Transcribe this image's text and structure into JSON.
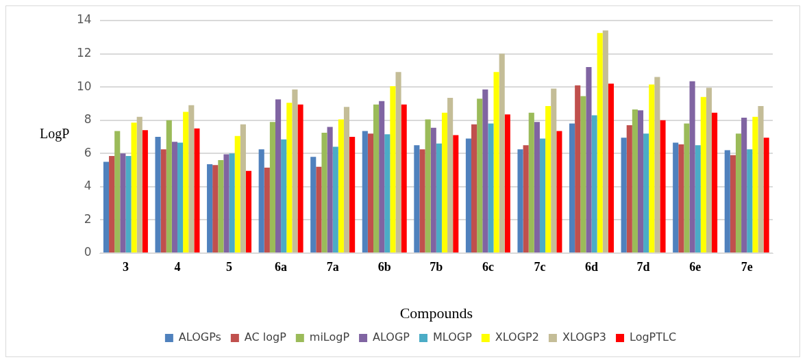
{
  "chart_data": {
    "type": "bar",
    "xlabel": "Compounds",
    "ylabel": "LogP",
    "categories": [
      "3",
      "4",
      "5",
      "6a",
      "7a",
      "6b",
      "7b",
      "6c",
      "7c",
      "6d",
      "7d",
      "6e",
      "7e"
    ],
    "ylim": [
      0,
      14
    ],
    "yticks": [
      0,
      2,
      4,
      6,
      8,
      10,
      12,
      14
    ],
    "grid": "y",
    "legend": "bottom",
    "series": [
      {
        "name": "ALOGPs",
        "color": "#4f81bd",
        "values": [
          5.5,
          7.0,
          5.35,
          6.25,
          5.8,
          7.35,
          6.5,
          6.9,
          6.25,
          7.8,
          6.95,
          6.65,
          6.2
        ]
      },
      {
        "name": "AC logP",
        "color": "#c0504d",
        "values": [
          5.85,
          6.25,
          5.3,
          5.15,
          5.2,
          7.2,
          6.25,
          7.75,
          6.5,
          10.1,
          7.7,
          6.55,
          5.9
        ]
      },
      {
        "name": "miLogP",
        "color": "#9bbb59",
        "values": [
          7.35,
          8.0,
          5.6,
          7.9,
          7.25,
          8.95,
          8.05,
          9.3,
          8.45,
          9.45,
          8.65,
          7.8,
          7.2
        ]
      },
      {
        "name": "ALOGP",
        "color": "#8064a2",
        "values": [
          6.0,
          6.7,
          5.95,
          9.25,
          7.6,
          9.15,
          7.55,
          9.85,
          7.9,
          11.2,
          8.6,
          10.35,
          8.15
        ]
      },
      {
        "name": "MLOGP",
        "color": "#4bacc6",
        "values": [
          5.85,
          6.65,
          6.0,
          6.85,
          6.4,
          7.15,
          6.6,
          7.8,
          6.9,
          8.3,
          7.2,
          6.5,
          6.25
        ]
      },
      {
        "name": "XLOGP2",
        "color": "#ffff00",
        "values": [
          7.85,
          8.5,
          7.05,
          9.05,
          8.05,
          10.05,
          8.45,
          10.9,
          8.85,
          13.25,
          10.15,
          9.4,
          8.2
        ]
      },
      {
        "name": "XLOGP3",
        "color": "#c4bd97",
        "values": [
          8.2,
          8.9,
          7.75,
          9.85,
          8.8,
          10.9,
          9.35,
          12.0,
          9.9,
          13.4,
          10.6,
          9.95,
          8.85
        ]
      },
      {
        "name": "LogPTLC",
        "color": "#ff0000",
        "values": [
          7.4,
          7.5,
          4.95,
          8.95,
          7.0,
          8.95,
          7.1,
          8.35,
          7.35,
          10.2,
          8.0,
          8.45,
          6.95
        ]
      }
    ]
  }
}
